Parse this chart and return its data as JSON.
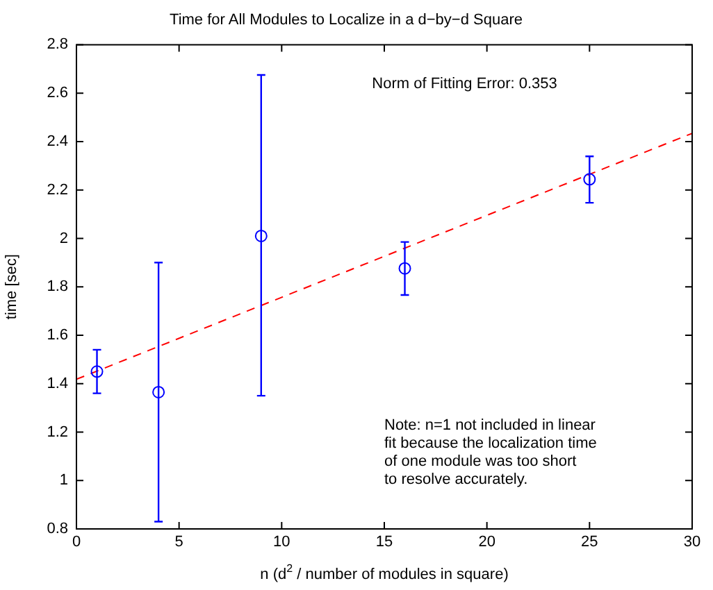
{
  "chart_data": {
    "type": "scatter",
    "title": "Time for All Modules to Localize in a d−by−d Square",
    "xlabel": "n (d$^{2}$ / number of modules in square)",
    "ylabel": "time [sec]",
    "series": [
      {
        "color": "#0000ff",
        "marker": "circle",
        "x": [
          1,
          4,
          9,
          16,
          25
        ],
        "values": [
          1.45,
          1.365,
          2.01,
          1.876,
          2.244
        ],
        "errors": [
          [
            1.36,
            1.54
          ],
          [
            0.83,
            1.9
          ],
          [
            1.35,
            2.675
          ],
          [
            1.766,
            1.985
          ],
          [
            2.147,
            2.339
          ]
        ]
      },
      {
        "type": "line",
        "color": "#ff0000",
        "line_style": "dashed",
        "marker": "none",
        "x": [
          0,
          30
        ],
        "values": [
          1.418,
          2.434
        ]
      }
    ],
    "annotations": [
      "Norm of Fitting Error: 0.353",
      "Note: n=1 not included in linear\nfit because the localization time\nof one module was too short\nto resolve accurately."
    ],
    "xlim": [
      0,
      30
    ],
    "xticks": [
      0,
      5,
      10,
      15,
      20,
      25,
      30
    ],
    "ylim": [
      0.8,
      2.8
    ],
    "yticks": [
      0.8,
      1,
      1.2,
      1.4,
      1.6,
      1.8,
      2,
      2.2,
      2.4,
      2.6,
      2.8
    ],
    "grid": false,
    "legend": false
  }
}
